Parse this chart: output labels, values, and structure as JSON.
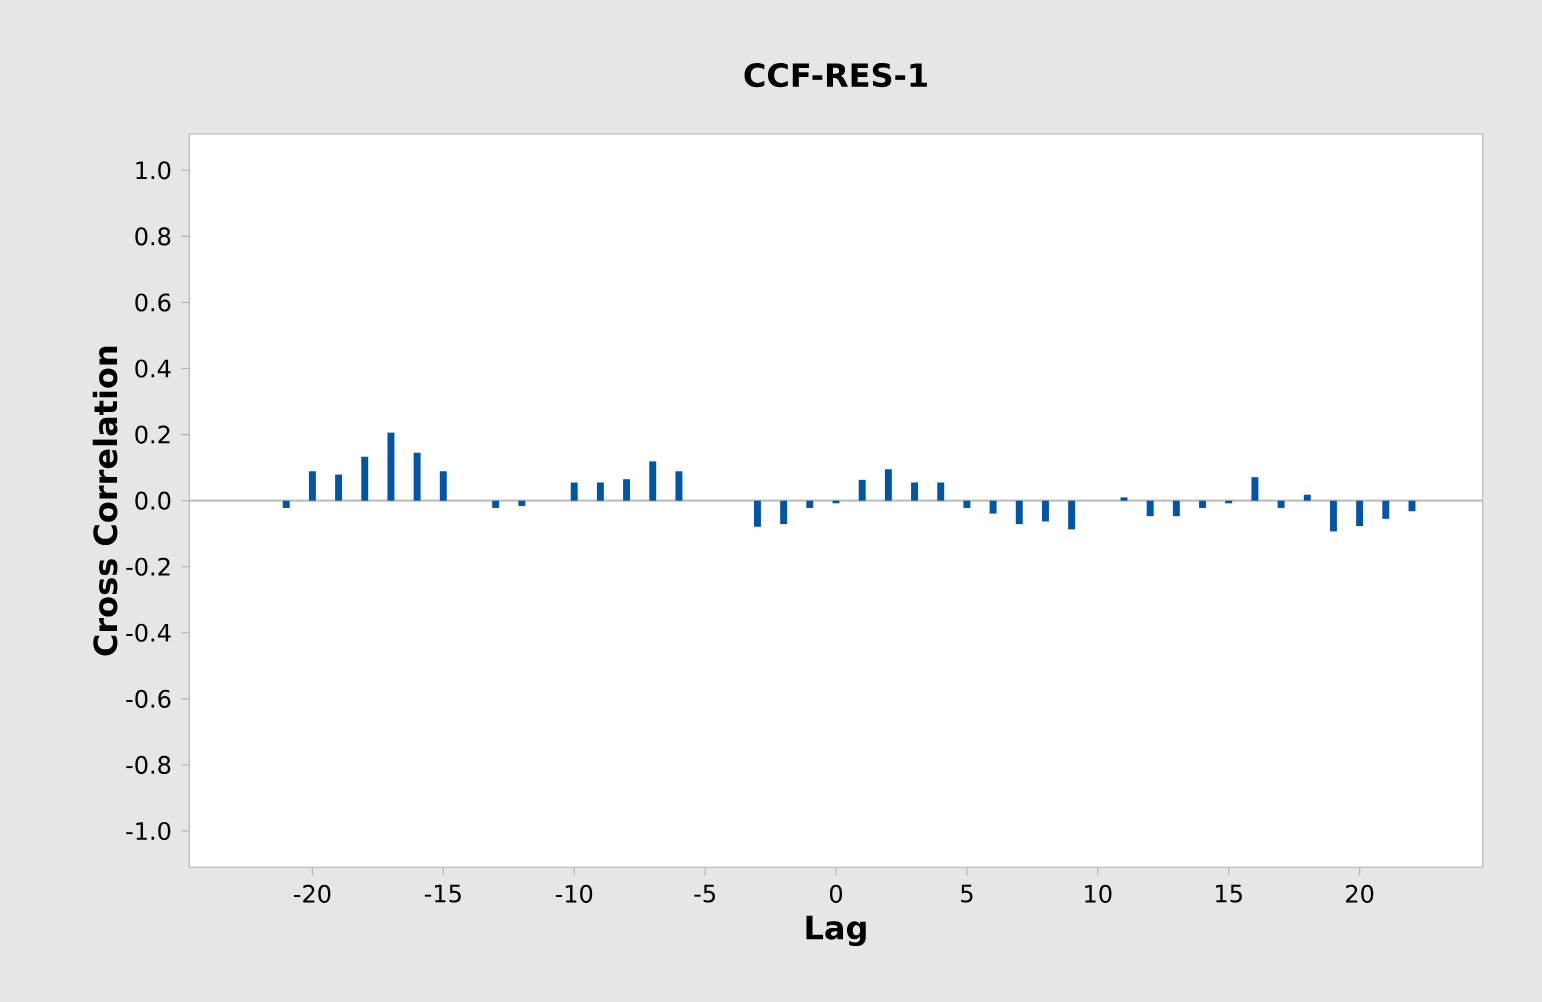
{
  "chart_data": {
    "type": "bar",
    "title": "CCF-RES-1",
    "xlabel": "Lag",
    "ylabel": "Cross Correlation",
    "x": [
      -21,
      -20,
      -19,
      -18,
      -17,
      -16,
      -15,
      -14,
      -13,
      -12,
      -11,
      -10,
      -9,
      -8,
      -7,
      -6,
      -5,
      -4,
      -3,
      -2,
      -1,
      0,
      1,
      2,
      3,
      4,
      5,
      6,
      7,
      8,
      9,
      10,
      11,
      12,
      13,
      14,
      15,
      16,
      17,
      18,
      19,
      20,
      21,
      22
    ],
    "values": [
      -0.022,
      0.089,
      0.079,
      0.133,
      0.206,
      0.145,
      0.089,
      null,
      -0.022,
      -0.016,
      null,
      0.055,
      0.055,
      0.065,
      0.119,
      0.089,
      null,
      null,
      -0.079,
      -0.071,
      -0.022,
      -0.008,
      0.063,
      0.095,
      0.055,
      0.055,
      -0.022,
      -0.039,
      -0.071,
      -0.063,
      -0.087,
      null,
      0.01,
      -0.047,
      -0.047,
      -0.022,
      -0.008,
      0.071,
      -0.022,
      0.018,
      -0.093,
      -0.077,
      -0.055,
      -0.032
    ],
    "color": "#0055a5",
    "xlim": [
      -24.7,
      24.7
    ],
    "ylim": [
      -1.11,
      1.11
    ],
    "xticks": [
      -20,
      -15,
      -10,
      -5,
      0,
      5,
      10,
      15,
      20
    ],
    "yticks": [
      {
        "value": -1.0,
        "label": "-1.0"
      },
      {
        "value": -0.8,
        "label": "-0.8"
      },
      {
        "value": -0.6,
        "label": "-0.6"
      },
      {
        "value": -0.4,
        "label": "-0.4"
      },
      {
        "value": -0.2,
        "label": "-0.2"
      },
      {
        "value": 0.0,
        "label": "0.0"
      },
      {
        "value": 0.2,
        "label": "0.2"
      },
      {
        "value": 0.4,
        "label": "0.4"
      },
      {
        "value": 0.6,
        "label": "0.6"
      },
      {
        "value": 0.8,
        "label": "0.8"
      },
      {
        "value": 1.0,
        "label": "1.0"
      }
    ],
    "ref_lines": [
      {
        "axis": "y",
        "value": 0,
        "color": "#c0c0c0"
      }
    ]
  }
}
